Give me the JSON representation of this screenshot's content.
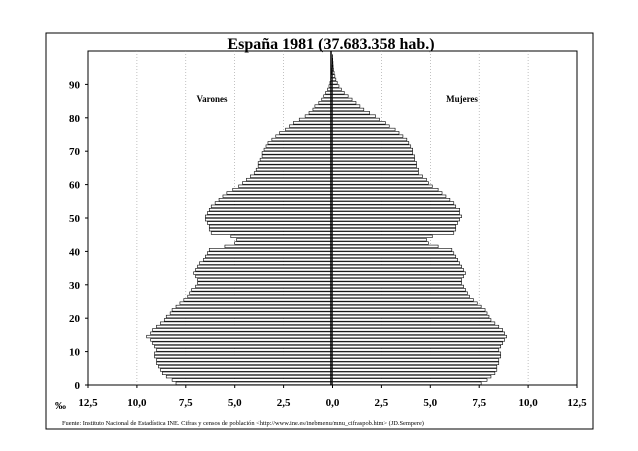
{
  "chart_data": {
    "type": "bar",
    "orientation": "horizontal",
    "layout": "population-pyramid",
    "title": "España 1981 (37.683.358 hab.)",
    "unit_label": "‰",
    "source": "Fuente: Instituto Nacional de Estadística INE. Cifras y censos de población <http://www.ine.es/inebmenu/mnu_cifraspob.htm> (JD.Sempere)",
    "x_range": [
      -12.5,
      12.5
    ],
    "x_ticks": [
      -12.5,
      -10,
      -7.5,
      -5,
      -2.5,
      0,
      2.5,
      5,
      7.5,
      10,
      12.5
    ],
    "x_tick_labels": [
      "12,5",
      "10,0",
      "7,5",
      "5,0",
      "2,5",
      "0,0",
      "2,5",
      "5,0",
      "7,5",
      "10,0",
      "12,5"
    ],
    "y_range": [
      0,
      100
    ],
    "y_ticks": [
      0,
      10,
      20,
      30,
      40,
      50,
      60,
      70,
      80,
      90
    ],
    "y_tick_labels": [
      "0",
      "10",
      "20",
      "30",
      "40",
      "50",
      "60",
      "70",
      "80",
      "90"
    ],
    "grid": "vertical-dotted",
    "ages": [
      0,
      1,
      2,
      3,
      4,
      5,
      6,
      7,
      8,
      9,
      10,
      11,
      12,
      13,
      14,
      15,
      16,
      17,
      18,
      19,
      20,
      21,
      22,
      23,
      24,
      25,
      26,
      27,
      28,
      29,
      30,
      31,
      32,
      33,
      34,
      35,
      36,
      37,
      38,
      39,
      40,
      41,
      42,
      43,
      44,
      45,
      46,
      47,
      48,
      49,
      50,
      51,
      52,
      53,
      54,
      55,
      56,
      57,
      58,
      59,
      60,
      61,
      62,
      63,
      64,
      65,
      66,
      67,
      68,
      69,
      70,
      71,
      72,
      73,
      74,
      75,
      76,
      77,
      78,
      79,
      80,
      81,
      82,
      83,
      84,
      85,
      86,
      87,
      88,
      89,
      90,
      91,
      92,
      93,
      94,
      95,
      96,
      97,
      98,
      99
    ],
    "series": [
      {
        "name": "Varones",
        "side": "left",
        "values": [
          8.0,
          8.2,
          8.5,
          8.7,
          8.8,
          8.9,
          9.0,
          9.0,
          9.1,
          9.1,
          9.0,
          9.1,
          9.2,
          9.3,
          9.5,
          9.3,
          9.2,
          9.0,
          8.8,
          8.6,
          8.5,
          8.3,
          8.2,
          8.0,
          7.8,
          7.6,
          7.4,
          7.3,
          7.2,
          7.0,
          6.9,
          6.9,
          7.0,
          7.1,
          7.0,
          6.9,
          6.8,
          6.6,
          6.5,
          6.4,
          6.3,
          5.5,
          5.0,
          4.9,
          5.2,
          6.2,
          6.3,
          6.3,
          6.4,
          6.5,
          6.5,
          6.4,
          6.3,
          6.2,
          6.0,
          5.8,
          5.6,
          5.4,
          5.1,
          4.8,
          4.6,
          4.4,
          4.2,
          4.0,
          3.9,
          3.8,
          3.8,
          3.7,
          3.6,
          3.6,
          3.5,
          3.4,
          3.3,
          3.1,
          2.9,
          2.7,
          2.4,
          2.2,
          2.0,
          1.7,
          1.4,
          1.2,
          1.0,
          0.9,
          0.7,
          0.55,
          0.45,
          0.35,
          0.25,
          0.18,
          0.13,
          0.09,
          0.06,
          0.04,
          0.03,
          0.02,
          0.01,
          0.01,
          0.0,
          0.0
        ]
      },
      {
        "name": "Mujeres",
        "side": "right",
        "values": [
          7.6,
          7.9,
          8.1,
          8.3,
          8.4,
          8.4,
          8.5,
          8.5,
          8.6,
          8.6,
          8.5,
          8.6,
          8.7,
          8.8,
          8.9,
          8.8,
          8.7,
          8.5,
          8.3,
          8.1,
          8.0,
          7.9,
          7.8,
          7.6,
          7.4,
          7.2,
          7.0,
          6.9,
          6.8,
          6.7,
          6.6,
          6.6,
          6.7,
          6.8,
          6.7,
          6.6,
          6.5,
          6.4,
          6.3,
          6.2,
          6.1,
          5.4,
          4.9,
          4.8,
          5.1,
          6.2,
          6.3,
          6.3,
          6.4,
          6.5,
          6.6,
          6.5,
          6.5,
          6.3,
          6.2,
          6.0,
          5.8,
          5.6,
          5.4,
          5.1,
          4.9,
          4.8,
          4.6,
          4.4,
          4.4,
          4.3,
          4.3,
          4.2,
          4.2,
          4.1,
          4.1,
          4.0,
          3.9,
          3.8,
          3.6,
          3.4,
          3.2,
          2.9,
          2.7,
          2.4,
          2.2,
          1.9,
          1.6,
          1.4,
          1.2,
          1.0,
          0.8,
          0.6,
          0.45,
          0.33,
          0.24,
          0.17,
          0.12,
          0.08,
          0.05,
          0.03,
          0.02,
          0.01,
          0.01,
          0.0
        ]
      }
    ]
  }
}
